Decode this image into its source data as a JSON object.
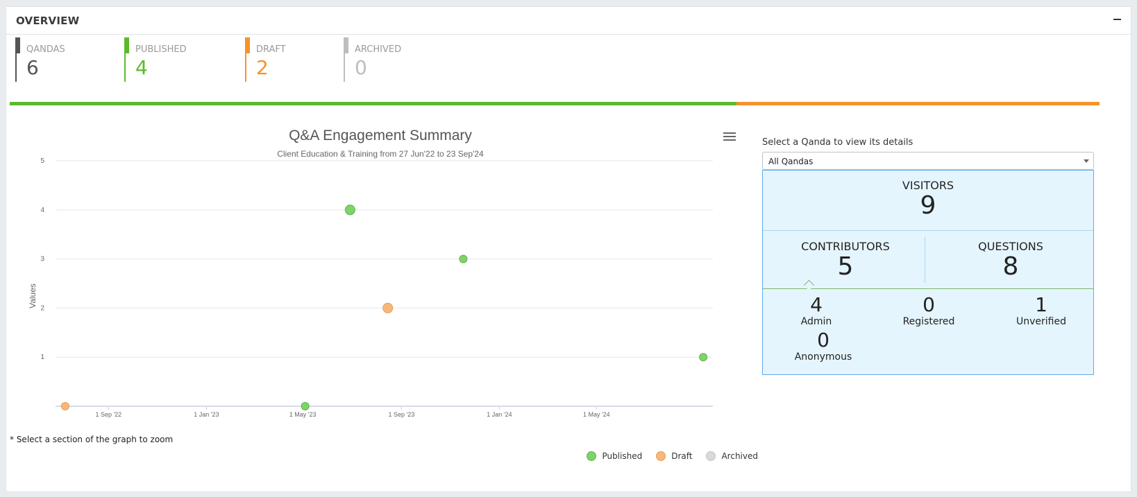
{
  "panel": {
    "title": "OVERVIEW"
  },
  "stats": [
    {
      "label": "QANDAS",
      "value": "6",
      "color": "#555555"
    },
    {
      "label": "PUBLISHED",
      "value": "4",
      "color": "#5cb82c"
    },
    {
      "label": "DRAFT",
      "value": "2",
      "color": "#f4922b"
    },
    {
      "label": "ARCHIVED",
      "value": "0",
      "color": "#bdbdbd"
    }
  ],
  "progress": {
    "published_fraction": 0.6667,
    "draft_fraction": 0.3333,
    "published_color": "#5cb82c",
    "draft_color": "#f4922b"
  },
  "chart_data": {
    "type": "scatter",
    "title": "Q&A Engagement Summary",
    "subtitle": "Client Education & Training from 27 Jun'22 to 23 Sep'24",
    "ylabel": "Values",
    "xlabel": "",
    "ylim": [
      0,
      5
    ],
    "yticks": [
      "1",
      "2",
      "3",
      "4",
      "5"
    ],
    "xlim": [
      "2022-06-27",
      "2024-09-23"
    ],
    "xticks": [
      {
        "date": "2022-09-01",
        "label": "1 Sep '22"
      },
      {
        "date": "2023-01-01",
        "label": "1 Jan '23"
      },
      {
        "date": "2023-05-01",
        "label": "1 May '23"
      },
      {
        "date": "2023-09-01",
        "label": "1 Sep '23"
      },
      {
        "date": "2024-01-01",
        "label": "1 Jan '24"
      },
      {
        "date": "2024-05-01",
        "label": "1 May '24"
      }
    ],
    "grid": true,
    "legend_placement": "bottom-right",
    "series": [
      {
        "name": "Published",
        "color": "#7ed36b",
        "points": [
          {
            "x": "2023-05-04",
            "y": 0,
            "size": "small"
          },
          {
            "x": "2023-06-29",
            "y": 4,
            "size": "large"
          },
          {
            "x": "2023-11-17",
            "y": 3,
            "size": "small"
          },
          {
            "x": "2024-09-11",
            "y": 1,
            "size": "small"
          }
        ]
      },
      {
        "name": "Draft",
        "color": "#f8b87a",
        "points": [
          {
            "x": "2022-07-09",
            "y": 0,
            "size": "small"
          },
          {
            "x": "2023-08-15",
            "y": 2,
            "size": "large"
          }
        ]
      },
      {
        "name": "Archived",
        "color": "#d9d9d9",
        "points": []
      }
    ],
    "note": "* Select a section of the graph to zoom"
  },
  "selector": {
    "label": "Select a Qanda to view its details",
    "value": "All Qandas"
  },
  "details": {
    "visitors": {
      "label": "VISITORS",
      "value": "9"
    },
    "contributors": {
      "label": "CONTRIBUTORS",
      "value": "5"
    },
    "questions": {
      "label": "QUESTIONS",
      "value": "8"
    },
    "breakdown": [
      {
        "label": "Admin",
        "value": "4"
      },
      {
        "label": "Registered",
        "value": "0"
      },
      {
        "label": "Unverified",
        "value": "1"
      },
      {
        "label": "Anonymous",
        "value": "0"
      }
    ]
  }
}
